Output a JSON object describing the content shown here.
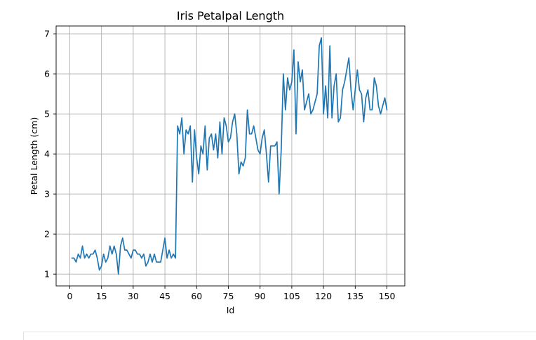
{
  "chart_data": {
    "type": "line",
    "title": "Iris Petalpal Length",
    "xlabel": "Id",
    "ylabel": "Petal Length (cm)",
    "xlim": [
      -6.45,
      158.45
    ],
    "ylim": [
      0.705,
      7.195
    ],
    "grid": true,
    "xticks": [
      0,
      15,
      30,
      45,
      60,
      75,
      90,
      105,
      120,
      135,
      150
    ],
    "yticks": [
      1,
      2,
      3,
      4,
      5,
      6,
      7
    ],
    "series": [
      {
        "color": "#1f77b4",
        "x": [
          1,
          2,
          3,
          4,
          5,
          6,
          7,
          8,
          9,
          10,
          11,
          12,
          13,
          14,
          15,
          16,
          17,
          18,
          19,
          20,
          21,
          22,
          23,
          24,
          25,
          26,
          27,
          28,
          29,
          30,
          31,
          32,
          33,
          34,
          35,
          36,
          37,
          38,
          39,
          40,
          41,
          42,
          43,
          44,
          45,
          46,
          47,
          48,
          49,
          50,
          51,
          52,
          53,
          54,
          55,
          56,
          57,
          58,
          59,
          60,
          61,
          62,
          63,
          64,
          65,
          66,
          67,
          68,
          69,
          70,
          71,
          72,
          73,
          74,
          75,
          76,
          77,
          78,
          79,
          80,
          81,
          82,
          83,
          84,
          85,
          86,
          87,
          88,
          89,
          90,
          91,
          92,
          93,
          94,
          95,
          96,
          97,
          98,
          99,
          100,
          101,
          102,
          103,
          104,
          105,
          106,
          107,
          108,
          109,
          110,
          111,
          112,
          113,
          114,
          115,
          116,
          117,
          118,
          119,
          120,
          121,
          122,
          123,
          124,
          125,
          126,
          127,
          128,
          129,
          130,
          131,
          132,
          133,
          134,
          135,
          136,
          137,
          138,
          139,
          140,
          141,
          142,
          143,
          144,
          145,
          146,
          147,
          148,
          149,
          150
        ],
        "y": [
          1.4,
          1.4,
          1.3,
          1.5,
          1.4,
          1.7,
          1.4,
          1.5,
          1.4,
          1.5,
          1.5,
          1.6,
          1.4,
          1.1,
          1.2,
          1.5,
          1.3,
          1.4,
          1.7,
          1.5,
          1.7,
          1.5,
          1.0,
          1.7,
          1.9,
          1.6,
          1.6,
          1.5,
          1.4,
          1.6,
          1.6,
          1.5,
          1.5,
          1.4,
          1.5,
          1.2,
          1.3,
          1.5,
          1.3,
          1.5,
          1.3,
          1.3,
          1.3,
          1.6,
          1.9,
          1.4,
          1.6,
          1.4,
          1.5,
          1.4,
          4.7,
          4.5,
          4.9,
          4.0,
          4.6,
          4.5,
          4.7,
          3.3,
          4.6,
          3.9,
          3.5,
          4.2,
          4.0,
          4.7,
          3.6,
          4.4,
          4.5,
          4.1,
          4.5,
          3.9,
          4.8,
          4.0,
          4.9,
          4.7,
          4.3,
          4.4,
          4.8,
          5.0,
          4.5,
          3.5,
          3.8,
          3.7,
          3.9,
          5.1,
          4.5,
          4.5,
          4.7,
          4.4,
          4.1,
          4.0,
          4.4,
          4.6,
          4.0,
          3.3,
          4.2,
          4.2,
          4.2,
          4.3,
          3.0,
          4.1,
          6.0,
          5.1,
          5.9,
          5.6,
          5.8,
          6.6,
          4.5,
          6.3,
          5.8,
          6.1,
          5.1,
          5.3,
          5.5,
          5.0,
          5.1,
          5.3,
          5.5,
          6.7,
          6.9,
          5.0,
          5.7,
          4.9,
          6.7,
          4.9,
          5.7,
          6.0,
          4.8,
          4.9,
          5.6,
          5.8,
          6.1,
          6.4,
          5.6,
          5.1,
          5.6,
          6.1,
          5.6,
          5.5,
          4.8,
          5.4,
          5.6,
          5.1,
          5.1,
          5.9,
          5.7,
          5.2,
          5.0,
          5.2,
          5.4,
          5.1
        ]
      }
    ]
  }
}
